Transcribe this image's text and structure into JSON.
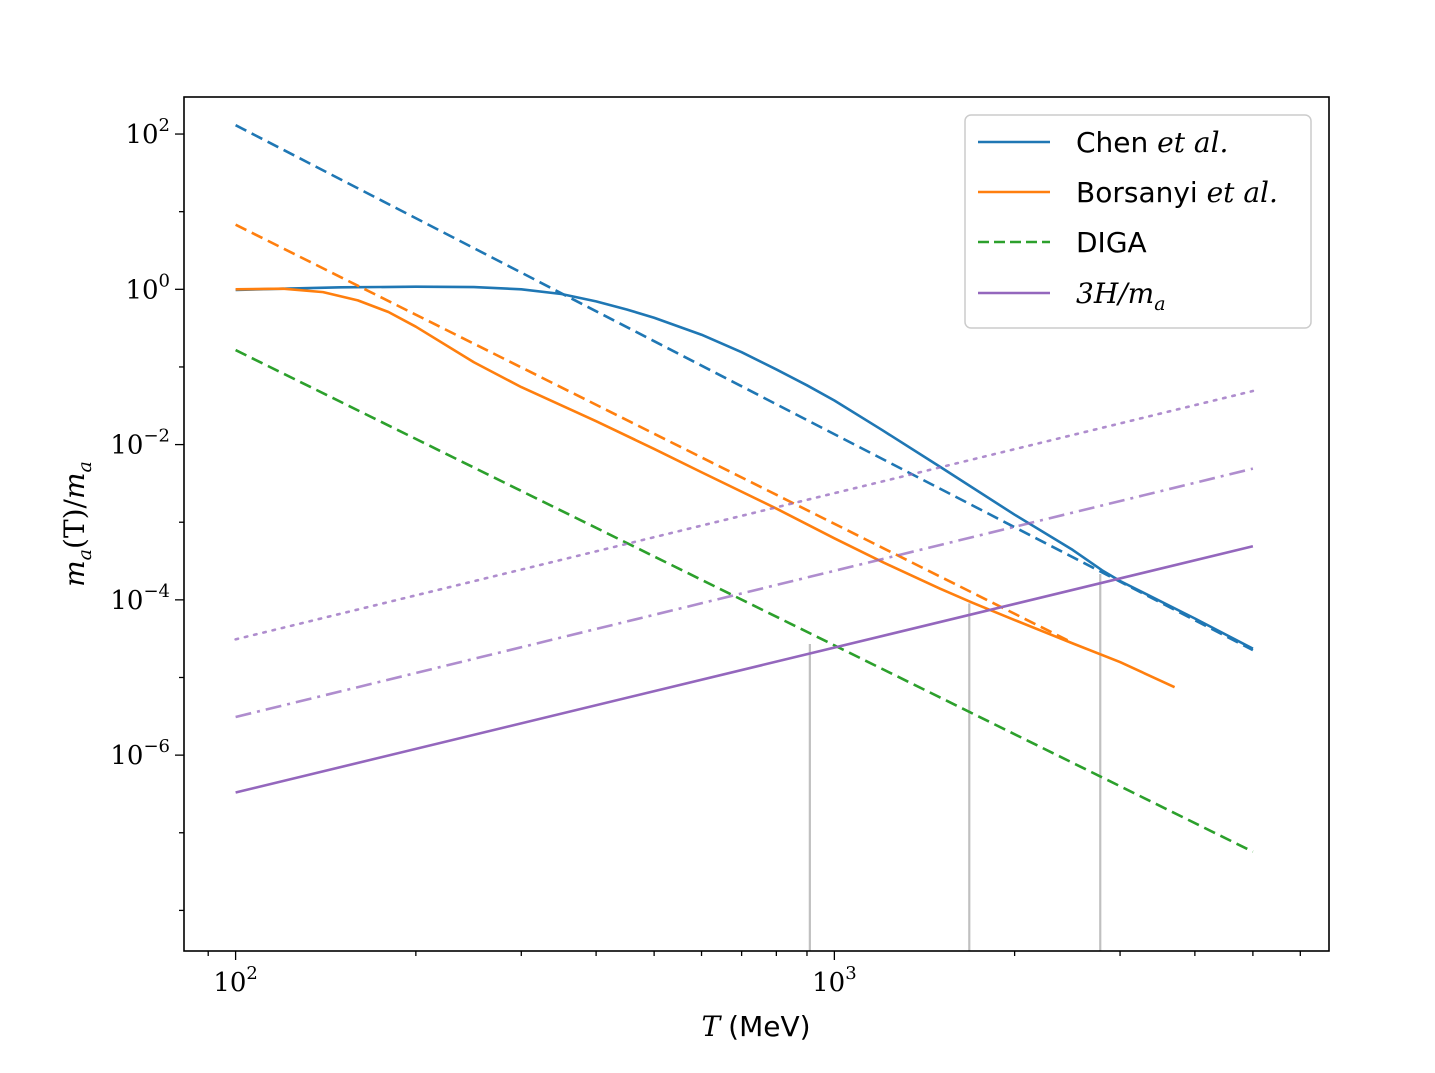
{
  "chart_data": {
    "type": "line",
    "title": "",
    "xlabel": {
      "var": "T",
      "unit": "(MeV)"
    },
    "ylabel": {
      "m1": "m",
      "sub1": "a",
      "mid": "(T)/",
      "m2": "m",
      "sub2": "a"
    },
    "xscale": "log",
    "yscale": "log",
    "xlim": [
      82,
      6700
    ],
    "ylim": [
      3e-09,
      300
    ],
    "x_ticks": [
      {
        "value": 100,
        "base": "10",
        "exp": "2"
      },
      {
        "value": 1000,
        "base": "10",
        "exp": "3"
      }
    ],
    "y_ticks": [
      {
        "value": 100,
        "base": "10",
        "exp": "2"
      },
      {
        "value": 1,
        "base": "10",
        "exp": "0"
      },
      {
        "value": 0.01,
        "base": "10",
        "exp": "−2"
      },
      {
        "value": 0.0001,
        "base": "10",
        "exp": "−4"
      },
      {
        "value": 1e-06,
        "base": "10",
        "exp": "−6"
      }
    ],
    "legend_position": "top-right",
    "legend": [
      {
        "name": "chen",
        "text": "Chen ",
        "italic": "et al.",
        "color": "#1f77b4",
        "dash": "solid"
      },
      {
        "name": "borsanyi",
        "text": "Borsanyi ",
        "italic": "et al.",
        "color": "#ff7f0e",
        "dash": "solid"
      },
      {
        "name": "diga",
        "text": "DIGA",
        "italic": "",
        "color": "#2ca02c",
        "dash": "dashed"
      },
      {
        "name": "hubble",
        "text": "3H/m",
        "italic": "",
        "sub": "a",
        "color": "#9467bd",
        "dash": "solid"
      }
    ],
    "series": [
      {
        "name": "Chen et al.",
        "color": "#1f77b4",
        "dash": "solid",
        "opacity": 1,
        "x": [
          100,
          120,
          150,
          200,
          250,
          300,
          350,
          400,
          450,
          500,
          600,
          700,
          800,
          900,
          1000,
          1200,
          1500,
          2000,
          2500,
          2800,
          3000,
          4000,
          5000
        ],
        "y": [
          0.98,
          1.02,
          1.06,
          1.08,
          1.07,
          1.0,
          0.87,
          0.7,
          0.55,
          0.43,
          0.26,
          0.155,
          0.093,
          0.058,
          0.037,
          0.0155,
          0.0052,
          0.00125,
          0.00044,
          0.00024,
          0.000175,
          5.75e-05,
          2.35e-05
        ]
      },
      {
        "name": "Chen et al. power law",
        "color": "#1f77b4",
        "dash": "dashed",
        "opacity": 1,
        "x": [
          100,
          5000
        ],
        "y": [
          130,
          2.25e-05
        ]
      },
      {
        "name": "Borsanyi et al.",
        "color": "#ff7f0e",
        "dash": "solid",
        "opacity": 1,
        "x": [
          100,
          120,
          140,
          160,
          180,
          200,
          250,
          300,
          400,
          500,
          600,
          800,
          1000,
          1200,
          1500,
          1700,
          2000,
          2500,
          3000,
          3700
        ],
        "y": [
          1.0,
          1.02,
          0.92,
          0.72,
          0.51,
          0.33,
          0.115,
          0.055,
          0.02,
          0.0088,
          0.0044,
          0.0015,
          0.00062,
          0.00031,
          0.00014,
          9.2e-05,
          5.5e-05,
          2.75e-05,
          1.58e-05,
          7.5e-06
        ]
      },
      {
        "name": "Borsanyi et al. power law",
        "color": "#ff7f0e",
        "dash": "dashed",
        "opacity": 1,
        "x": [
          100,
          2500
        ],
        "y": [
          6.8,
          2.8e-05
        ]
      },
      {
        "name": "DIGA",
        "color": "#2ca02c",
        "dash": "dashed",
        "opacity": 1,
        "x": [
          100,
          5000
        ],
        "y": [
          0.165,
          5.7e-08
        ]
      },
      {
        "name": "3H/m_a",
        "color": "#9467bd",
        "dash": "solid",
        "opacity": 1,
        "x": [
          100,
          5000
        ],
        "y": [
          3.3e-07,
          0.00049
        ]
      },
      {
        "name": "3H/m_a dash-dot",
        "color": "#9467bd",
        "dash": "dashdot",
        "opacity": 0.75,
        "x": [
          100,
          5000
        ],
        "y": [
          3.1e-06,
          0.0049
        ]
      },
      {
        "name": "3H/m_a dotted",
        "color": "#9467bd",
        "dash": "dotted",
        "opacity": 0.75,
        "x": [
          100,
          5000
        ],
        "y": [
          3.1e-05,
          0.049
        ]
      }
    ],
    "vertical_markers": [
      {
        "x": 910,
        "y_top": 2.7e-05,
        "color": "#c0c0c0"
      },
      {
        "x": 1680,
        "y_top": 9e-05,
        "color": "#c0c0c0"
      },
      {
        "x": 2780,
        "y_top": 0.000215,
        "color": "#c0c0c0"
      }
    ]
  }
}
